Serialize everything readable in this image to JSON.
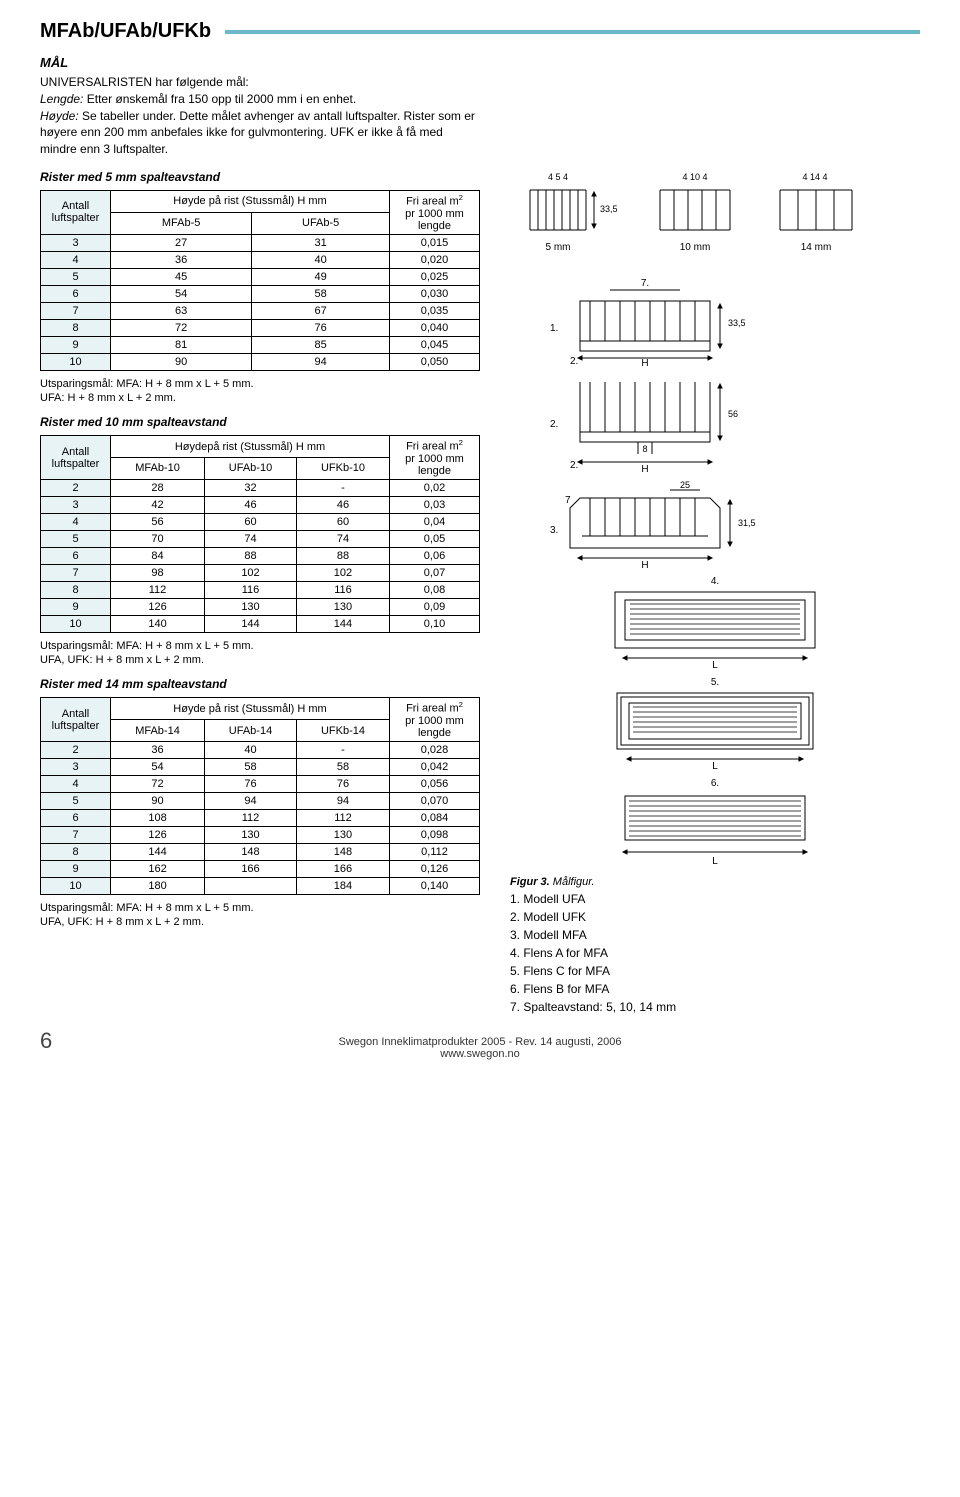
{
  "header": {
    "title": "MFAb/UFAb/UFKb"
  },
  "intro": {
    "h": "MÅL",
    "l1a": "UNIVERSALRISTEN har følgende mål:",
    "l2a": "Lengde:",
    "l2b": "Etter ønskemål fra 150 opp til 2000 mm i en enhet.",
    "l3a": "Høyde:",
    "l3b": "Se tabeller under. Dette målet avhenger av antall luftspalter. Rister som er høyere enn 200 mm anbefales ikke for gulvmontering. UFK er ikke å få med mindre enn 3 luftspalter."
  },
  "t5": {
    "title": "Rister med 5 mm spalteavstand",
    "h_a": "Antall luftspalter",
    "h_b": "Høyde på rist (Stussmål)\nH mm",
    "h_c": "Fri areal m² pr 1000 mm lengde",
    "cols": [
      "MFAb-5",
      "UFAb-5"
    ],
    "rows": [
      [
        3,
        27,
        31,
        "0,015"
      ],
      [
        4,
        36,
        40,
        "0,020"
      ],
      [
        5,
        45,
        49,
        "0,025"
      ],
      [
        6,
        54,
        58,
        "0,030"
      ],
      [
        7,
        63,
        67,
        "0,035"
      ],
      [
        8,
        72,
        76,
        "0,040"
      ],
      [
        9,
        81,
        85,
        "0,045"
      ],
      [
        10,
        90,
        94,
        "0,050"
      ]
    ],
    "note": "Utsparingsmål: MFA: H + 8 mm x  L + 5 mm.\nUFA:  H + 8 mm x L + 2 mm."
  },
  "t10": {
    "title": "Rister med 10 mm spalteavstand",
    "h_a": "Antall luftspalter",
    "h_b": "Høydepå rist (Stussmål)\nH mm",
    "h_c": "Fri areal m² pr 1000 mm lengde",
    "cols": [
      "MFAb-10",
      "UFAb-10",
      "UFKb-10"
    ],
    "rows": [
      [
        2,
        "28",
        "32",
        "-",
        "0,02"
      ],
      [
        3,
        "42",
        "46",
        "46",
        "0,03"
      ],
      [
        4,
        "56",
        "60",
        "60",
        "0,04"
      ],
      [
        5,
        "70",
        "74",
        "74",
        "0,05"
      ],
      [
        6,
        "84",
        "88",
        "88",
        "0,06"
      ],
      [
        7,
        "98",
        "102",
        "102",
        "0,07"
      ],
      [
        8,
        "112",
        "116",
        "116",
        "0,08"
      ],
      [
        9,
        "126",
        "130",
        "130",
        "0,09"
      ],
      [
        10,
        "140",
        "144",
        "144",
        "0,10"
      ]
    ],
    "note": "Utsparingsmål: MFA: H + 8 mm x  L + 5 mm.\n UFA, UFK: H + 8 mm x L + 2 mm."
  },
  "t14": {
    "title": "Rister med 14 mm spalteavstand",
    "h_a": "Antall luftspalter",
    "h_b": "Høyde på rist (Stussmål)\nH mm",
    "h_c": "Fri areal m² pr 1000 mm lengde",
    "cols": [
      "MFAb-14",
      "UFAb-14",
      "UFKb-14"
    ],
    "rows": [
      [
        2,
        "36",
        "40",
        "-",
        "0,028"
      ],
      [
        3,
        "54",
        "58",
        "58",
        "0,042"
      ],
      [
        4,
        "72",
        "76",
        "76",
        "0,056"
      ],
      [
        5,
        "90",
        "94",
        "94",
        "0,070"
      ],
      [
        6,
        "108",
        "112",
        "112",
        "0,084"
      ],
      [
        7,
        "126",
        "130",
        "130",
        "0,098"
      ],
      [
        8,
        "144",
        "148",
        "148",
        "0,112"
      ],
      [
        9,
        "162",
        "166",
        "166",
        "0,126"
      ],
      [
        10,
        "180",
        "",
        "184",
        "0,140"
      ]
    ],
    "note": "Utsparingsmål: MFA: H + 8 mm x  L + 5 mm.\nUFA, UFK: H + 8 mm x L + 2 mm."
  },
  "fig": {
    "caption": "Figur 3.",
    "caption2": "Målfigur.",
    "items": [
      "1. Modell UFA",
      "2. Modell UFK",
      "3. Modell MFA",
      "4. Flens A for MFA",
      "5. Flens C for MFA",
      "6. Flens B for MFA",
      "7. Spalteavstand: 5, 10, 14 mm"
    ],
    "labels": {
      "s5": "5 mm",
      "s10": "10 mm",
      "s14": "14 mm",
      "d454": "4 5 4",
      "d4104": "4 10 4",
      "d4144": "4 14 4",
      "d335": "33,5",
      "d7": "7.",
      "d1": "1.",
      "d2a": "2.",
      "d2b": "2.",
      "dH": "H",
      "d56": "56",
      "d8": "8",
      "d25": "25",
      "d315": "31,5",
      "d3": "3.",
      "d4": "4.",
      "d5": "5.",
      "d6": "6.",
      "dL": "L",
      "d2c": "2."
    }
  },
  "footer": {
    "l1": "Swegon Inneklimatprodukter 2005 - Rev. 14 augusti, 2006",
    "l2": "www.swegon.no",
    "page": "6"
  }
}
